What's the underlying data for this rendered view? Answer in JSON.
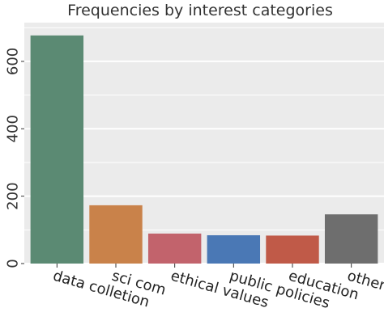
{
  "chart_data": {
    "type": "bar",
    "title": "Frequencies by interest categories",
    "xlabel": "",
    "ylabel": "",
    "categories": [
      "data colletion",
      "sci com",
      "ethical values",
      "public policies",
      "education",
      "other"
    ],
    "values": [
      677,
      173,
      89,
      84,
      83,
      146
    ],
    "colors": [
      "#5b8a73",
      "#c9824a",
      "#c2636c",
      "#4a78b5",
      "#c05a48",
      "#6e6e6e"
    ],
    "ylim": [
      0,
      715
    ],
    "yticks": [
      0,
      200,
      400,
      600
    ],
    "ytick_labels": [
      "0",
      "200",
      "400",
      "600"
    ],
    "grid": true,
    "background": "#ebebeb",
    "legend": "none"
  }
}
